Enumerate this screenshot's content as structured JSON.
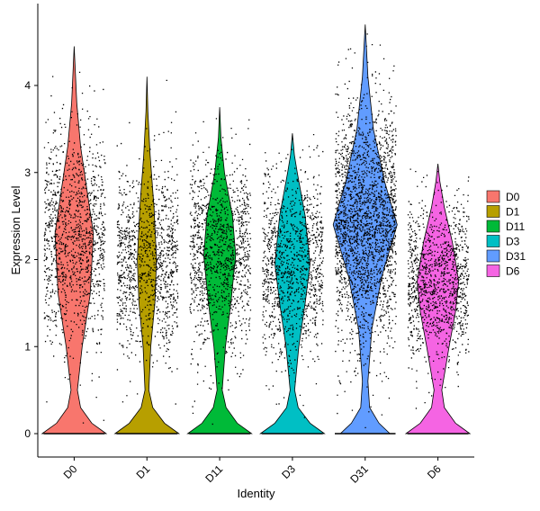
{
  "chart_data": {
    "type": "violin",
    "xlabel": "Identity",
    "ylabel": "Expression Level",
    "ylim": [
      -0.2,
      4.9
    ],
    "yticks": [
      0,
      1,
      2,
      3,
      4
    ],
    "categories": [
      "D0",
      "D1",
      "D11",
      "D3",
      "D31",
      "D6"
    ],
    "legend": {
      "placement": "right",
      "entries": [
        "D0",
        "D1",
        "D11",
        "D3",
        "D31",
        "D6"
      ]
    },
    "grid": false,
    "jitter_points": true,
    "series": [
      {
        "name": "D0",
        "color": "#F8766D",
        "max": 4.45,
        "center": 2.3,
        "spread": 0.6,
        "zero_fraction": 0.18,
        "density_shape": [
          [
            0,
            1.0
          ],
          [
            0.12,
            0.55
          ],
          [
            0.3,
            0.2
          ],
          [
            0.5,
            0.1
          ],
          [
            1.0,
            0.25
          ],
          [
            1.6,
            0.5
          ],
          [
            2.3,
            0.6
          ],
          [
            2.8,
            0.4
          ],
          [
            3.3,
            0.2
          ],
          [
            3.8,
            0.08
          ],
          [
            4.45,
            0.0
          ]
        ]
      },
      {
        "name": "D1",
        "color": "#B79F00",
        "max": 4.1,
        "center": 2.0,
        "spread": 0.55,
        "zero_fraction": 0.22,
        "density_shape": [
          [
            0,
            1.0
          ],
          [
            0.12,
            0.55
          ],
          [
            0.3,
            0.18
          ],
          [
            0.5,
            0.06
          ],
          [
            1.0,
            0.12
          ],
          [
            1.5,
            0.25
          ],
          [
            2.0,
            0.3
          ],
          [
            2.6,
            0.22
          ],
          [
            3.2,
            0.1
          ],
          [
            3.7,
            0.03
          ],
          [
            4.1,
            0.0
          ]
        ]
      },
      {
        "name": "D11",
        "color": "#00BA38",
        "max": 3.75,
        "center": 2.05,
        "spread": 0.55,
        "zero_fraction": 0.22,
        "density_shape": [
          [
            0,
            1.0
          ],
          [
            0.12,
            0.55
          ],
          [
            0.3,
            0.2
          ],
          [
            0.5,
            0.08
          ],
          [
            1.0,
            0.18
          ],
          [
            1.5,
            0.35
          ],
          [
            2.05,
            0.5
          ],
          [
            2.5,
            0.4
          ],
          [
            3.0,
            0.15
          ],
          [
            3.4,
            0.04
          ],
          [
            3.75,
            0.0
          ]
        ]
      },
      {
        "name": "D3",
        "color": "#00BFC4",
        "max": 3.45,
        "center": 1.95,
        "spread": 0.55,
        "zero_fraction": 0.2,
        "density_shape": [
          [
            0,
            1.0
          ],
          [
            0.12,
            0.55
          ],
          [
            0.3,
            0.18
          ],
          [
            0.5,
            0.07
          ],
          [
            1.0,
            0.2
          ],
          [
            1.5,
            0.4
          ],
          [
            1.95,
            0.55
          ],
          [
            2.5,
            0.4
          ],
          [
            3.0,
            0.15
          ],
          [
            3.2,
            0.06
          ],
          [
            3.45,
            0.0
          ]
        ]
      },
      {
        "name": "D31",
        "color": "#619CFF",
        "max": 4.7,
        "center": 2.4,
        "spread": 0.7,
        "zero_fraction": 0.1,
        "density_shape": [
          [
            0,
            0.45
          ],
          [
            0.12,
            0.25
          ],
          [
            0.3,
            0.08
          ],
          [
            0.6,
            0.05
          ],
          [
            1.2,
            0.12
          ],
          [
            1.8,
            0.3
          ],
          [
            2.4,
            0.58
          ],
          [
            2.9,
            0.35
          ],
          [
            3.5,
            0.15
          ],
          [
            4.1,
            0.05
          ],
          [
            4.7,
            0.0
          ]
        ]
      },
      {
        "name": "D6",
        "color": "#F564E3",
        "max": 3.1,
        "center": 1.75,
        "spread": 0.45,
        "zero_fraction": 0.18,
        "density_shape": [
          [
            0,
            1.0
          ],
          [
            0.12,
            0.55
          ],
          [
            0.3,
            0.2
          ],
          [
            0.5,
            0.12
          ],
          [
            1.0,
            0.35
          ],
          [
            1.4,
            0.55
          ],
          [
            1.75,
            0.65
          ],
          [
            2.2,
            0.45
          ],
          [
            2.6,
            0.2
          ],
          [
            2.9,
            0.06
          ],
          [
            3.1,
            0.0
          ]
        ]
      }
    ]
  }
}
